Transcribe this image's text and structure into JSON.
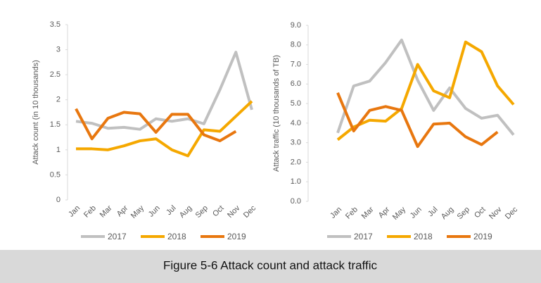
{
  "caption": "Figure 5-6 Attack count and attack traffic",
  "chart_data": [
    {
      "type": "line",
      "y_label": "Attack count (in 10 thousands)",
      "categories": [
        "Jan",
        "Feb",
        "Mar",
        "Apr",
        "May",
        "Jun",
        "Jul",
        "Aug",
        "Sep",
        "Oct",
        "Nov",
        "Dec"
      ],
      "ylim": [
        0,
        3.5
      ],
      "yticks": [
        0,
        0.5,
        1,
        1.5,
        2,
        2.5,
        3,
        3.5
      ],
      "series": [
        {
          "name": "2017",
          "color": "#c0c0c0",
          "values": [
            1.57,
            1.53,
            1.43,
            1.45,
            1.41,
            1.62,
            1.57,
            1.62,
            1.52,
            2.2,
            2.95,
            1.8
          ]
        },
        {
          "name": "2018",
          "color": "#f5a800",
          "values": [
            1.02,
            1.02,
            1.0,
            1.08,
            1.18,
            1.22,
            1.0,
            0.88,
            1.4,
            1.37,
            1.67,
            1.97
          ]
        },
        {
          "name": "2019",
          "color": "#e8770f",
          "values": [
            1.82,
            1.22,
            1.63,
            1.75,
            1.72,
            1.35,
            1.71,
            1.71,
            1.3,
            1.18,
            1.37,
            null
          ]
        }
      ]
    },
    {
      "type": "line",
      "y_label": "Attack traffic (10 thousands of TB)",
      "categories": [
        "Jan",
        "Feb",
        "Mar",
        "Apr",
        "May",
        "Jun",
        "Jul",
        "Aug",
        "Sep",
        "Oct",
        "Nov",
        "Dec"
      ],
      "ylim": [
        0,
        9
      ],
      "yticks": [
        {
          "value": 0,
          "label": "0.0"
        },
        {
          "value": 1,
          "label": "1.0"
        },
        {
          "value": 2,
          "label": "2.0"
        },
        {
          "value": 3,
          "label": "3.0"
        },
        {
          "value": 4,
          "label": "4.0"
        },
        {
          "value": 5,
          "label": "5.0"
        },
        {
          "value": 6,
          "label": "6.0"
        },
        {
          "value": 7,
          "label": "7.0"
        },
        {
          "value": 8,
          "label": "8.0"
        },
        {
          "value": 9,
          "label": "9.0"
        }
      ],
      "series": [
        {
          "name": "2017",
          "color": "#c0c0c0",
          "values": [
            3.5,
            5.9,
            6.15,
            7.1,
            8.25,
            6.2,
            4.65,
            5.8,
            4.75,
            4.25,
            4.4,
            3.4
          ]
        },
        {
          "name": "2018",
          "color": "#f5a800",
          "values": [
            3.15,
            3.8,
            4.15,
            4.1,
            4.75,
            7.0,
            5.65,
            5.3,
            8.15,
            7.65,
            5.9,
            4.95
          ]
        },
        {
          "name": "2019",
          "color": "#e8770f",
          "values": [
            5.55,
            3.6,
            4.65,
            4.85,
            4.65,
            2.8,
            3.95,
            4.0,
            3.3,
            2.9,
            3.55,
            null
          ]
        }
      ]
    }
  ]
}
